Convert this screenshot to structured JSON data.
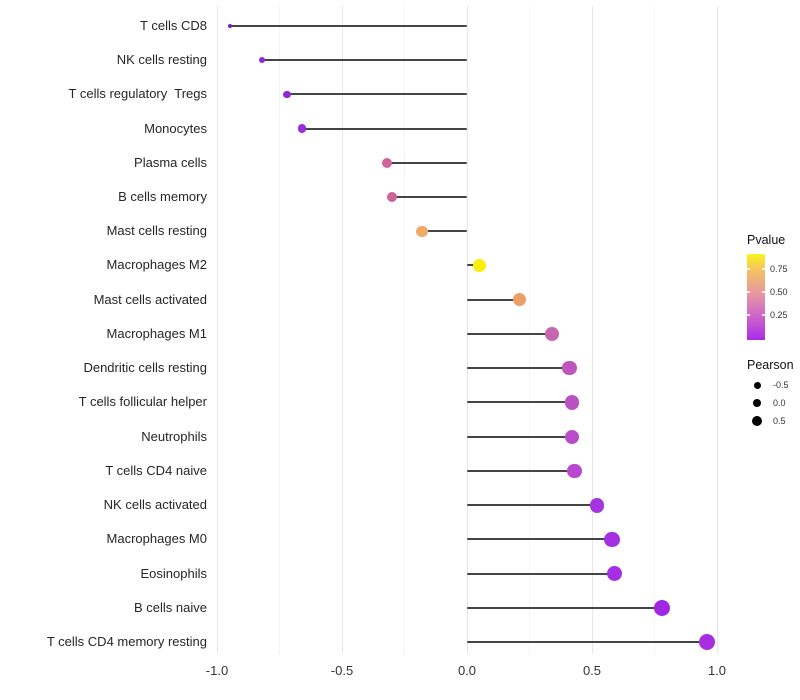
{
  "chart_data": {
    "type": "scatter",
    "variant": "lollipop-horizontal",
    "title": "",
    "xlabel": "",
    "ylabel": "",
    "xlim": [
      -1.05,
      1.07
    ],
    "x_ticks": [
      "-1.0",
      "-0.5",
      "0.0",
      "0.5",
      "1.0"
    ],
    "grid": "vertical-only",
    "legend_position": "right",
    "categories": [
      "T cells CD8",
      "NK cells resting",
      "T cells regulatory  Tregs",
      "Monocytes",
      "Plasma cells",
      "B cells memory",
      "Mast cells resting",
      "Macrophages M2",
      "Mast cells activated",
      "Macrophages M1",
      "Dendritic cells resting",
      "T cells follicular helper",
      "Neutrophils",
      "T cells CD4 naive",
      "NK cells activated",
      "Macrophages M0",
      "Eosinophils",
      "B cells naive",
      "T cells CD4 memory resting"
    ],
    "series": [
      {
        "name": "Pearson",
        "values": [
          -0.95,
          -0.82,
          -0.72,
          -0.66,
          -0.32,
          -0.3,
          -0.18,
          0.05,
          0.21,
          0.34,
          0.41,
          0.42,
          0.42,
          0.43,
          0.52,
          0.58,
          0.59,
          0.78,
          0.96
        ]
      }
    ],
    "point_colors": [
      "#7B22B5",
      "#9128DB",
      "#9128D6",
      "#9A2BDF",
      "#D0659C",
      "#CD6199",
      "#F0AB6B",
      "#F9EF07",
      "#EC9E67",
      "#C566AE",
      "#BE55BF",
      "#BB50C5",
      "#B94CC9",
      "#B848CD",
      "#A534E1",
      "#A52FE3",
      "#A52FE3",
      "#A026E4",
      "#A62EE0"
    ],
    "stem_color": "#454545"
  },
  "legend_pvalue": {
    "title": "Pvalue",
    "tick_labels": [
      "0.75",
      "0.50",
      "0.25"
    ],
    "gradient_stops": [
      "#FAF21F",
      "#F5C45F",
      "#E8989F",
      "#CF6BC6",
      "#A92BE9"
    ]
  },
  "legend_pearson": {
    "title": "Pearson",
    "entries": [
      {
        "label": "-0.5",
        "diameter": 7
      },
      {
        "label": "0.0",
        "diameter": 8.5
      },
      {
        "label": "0.5",
        "diameter": 10
      }
    ],
    "dot_color": "#000000"
  }
}
